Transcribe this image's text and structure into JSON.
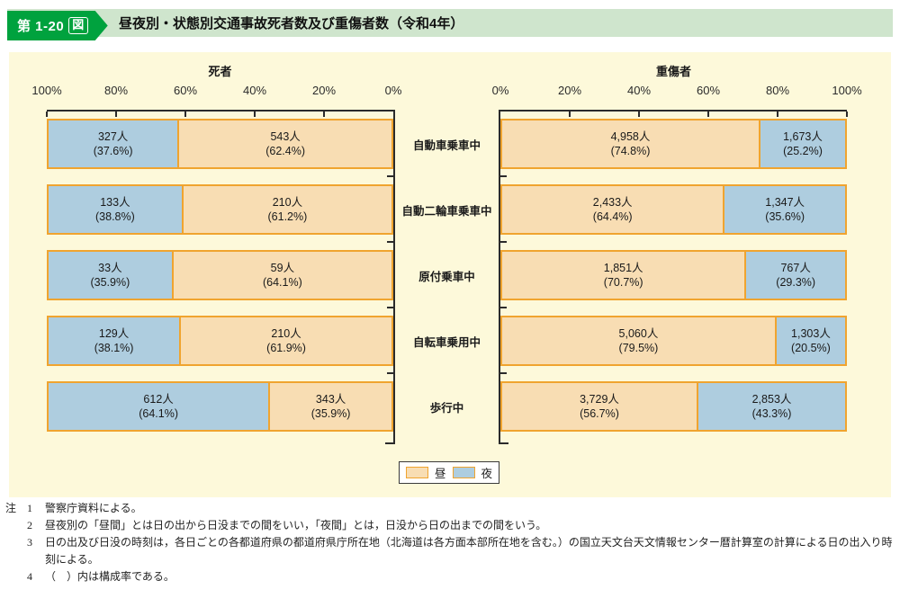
{
  "header": {
    "label_main": "第 1-20",
    "label_box": "図",
    "title": "昼夜別・状態別交通事故死者数及び重傷者数（令和4年）"
  },
  "legend": {
    "day": "昼",
    "night": "夜"
  },
  "colors": {
    "badge_green": "#00a23e",
    "header_strip": "#cfe5cd",
    "panel_bg": "#fdf9da",
    "day_fill": "#f8ddb3",
    "night_fill": "#aecddf",
    "bar_border": "#f0a42f",
    "axis": "#2b2b2b"
  },
  "categories": [
    "自動車乗車中",
    "自動二輪車乗車中",
    "原付乗車中",
    "自転車乗用中",
    "歩行中"
  ],
  "chart_data": [
    {
      "type": "bar",
      "title": "死者",
      "orientation": "horizontal-stacked",
      "axis_direction": "100-to-0-left-to-right",
      "tick_labels": [
        "100%",
        "80%",
        "60%",
        "40%",
        "20%",
        "0%"
      ],
      "categories": [
        "自動車乗車中",
        "自動二輪車乗車中",
        "原付乗車中",
        "自転車乗用中",
        "歩行中"
      ],
      "rows": [
        {
          "segments": [
            {
              "type": "night",
              "value": "327人",
              "pct": "(37.6%)",
              "width": 37.6
            },
            {
              "type": "day",
              "value": "543人",
              "pct": "(62.4%)",
              "width": 62.4
            }
          ]
        },
        {
          "segments": [
            {
              "type": "night",
              "value": "133人",
              "pct": "(38.8%)",
              "width": 38.8
            },
            {
              "type": "day",
              "value": "210人",
              "pct": "(61.2%)",
              "width": 61.2
            }
          ]
        },
        {
          "segments": [
            {
              "type": "night",
              "value": "33人",
              "pct": "(35.9%)",
              "width": 35.9
            },
            {
              "type": "day",
              "value": "59人",
              "pct": "(64.1%)",
              "width": 64.1
            }
          ]
        },
        {
          "segments": [
            {
              "type": "night",
              "value": "129人",
              "pct": "(38.1%)",
              "width": 38.1
            },
            {
              "type": "day",
              "value": "210人",
              "pct": "(61.9%)",
              "width": 61.9
            }
          ]
        },
        {
          "segments": [
            {
              "type": "night",
              "value": "612人",
              "pct": "(64.1%)",
              "width": 64.1
            },
            {
              "type": "day",
              "value": "343人",
              "pct": "(35.9%)",
              "width": 35.9
            }
          ]
        }
      ]
    },
    {
      "type": "bar",
      "title": "重傷者",
      "orientation": "horizontal-stacked",
      "axis_direction": "0-to-100-left-to-right",
      "tick_labels": [
        "0%",
        "20%",
        "40%",
        "60%",
        "80%",
        "100%"
      ],
      "categories": [
        "自動車乗車中",
        "自動二輪車乗車中",
        "原付乗車中",
        "自転車乗用中",
        "歩行中"
      ],
      "rows": [
        {
          "segments": [
            {
              "type": "day",
              "value": "4,958人",
              "pct": "(74.8%)",
              "width": 74.8
            },
            {
              "type": "night",
              "value": "1,673人",
              "pct": "(25.2%)",
              "width": 25.2
            }
          ]
        },
        {
          "segments": [
            {
              "type": "day",
              "value": "2,433人",
              "pct": "(64.4%)",
              "width": 64.4
            },
            {
              "type": "night",
              "value": "1,347人",
              "pct": "(35.6%)",
              "width": 35.6
            }
          ]
        },
        {
          "segments": [
            {
              "type": "day",
              "value": "1,851人",
              "pct": "(70.7%)",
              "width": 70.7
            },
            {
              "type": "night",
              "value": "767人",
              "pct": "(29.3%)",
              "width": 29.3
            }
          ]
        },
        {
          "segments": [
            {
              "type": "day",
              "value": "5,060人",
              "pct": "(79.5%)",
              "width": 79.5
            },
            {
              "type": "night",
              "value": "1,303人",
              "pct": "(20.5%)",
              "width": 20.5
            }
          ]
        },
        {
          "segments": [
            {
              "type": "day",
              "value": "3,729人",
              "pct": "(56.7%)",
              "width": 56.7
            },
            {
              "type": "night",
              "value": "2,853人",
              "pct": "(43.3%)",
              "width": 43.3
            }
          ]
        }
      ]
    }
  ],
  "notes": {
    "prefix": "注",
    "items": [
      {
        "num": "1",
        "text": "警察庁資料による。"
      },
      {
        "num": "2",
        "text": "昼夜別の「昼間」とは日の出から日没までの間をいい，「夜間」とは，日没から日の出までの間をいう。"
      },
      {
        "num": "3",
        "text": "日の出及び日没の時刻は，各日ごとの各都道府県の都道府県庁所在地（北海道は各方面本部所在地を含む。）の国立天文台天文情報センター暦計算室の計算による日の出入り時刻による。"
      },
      {
        "num": "4",
        "text": "（　）内は構成率である。"
      }
    ]
  }
}
